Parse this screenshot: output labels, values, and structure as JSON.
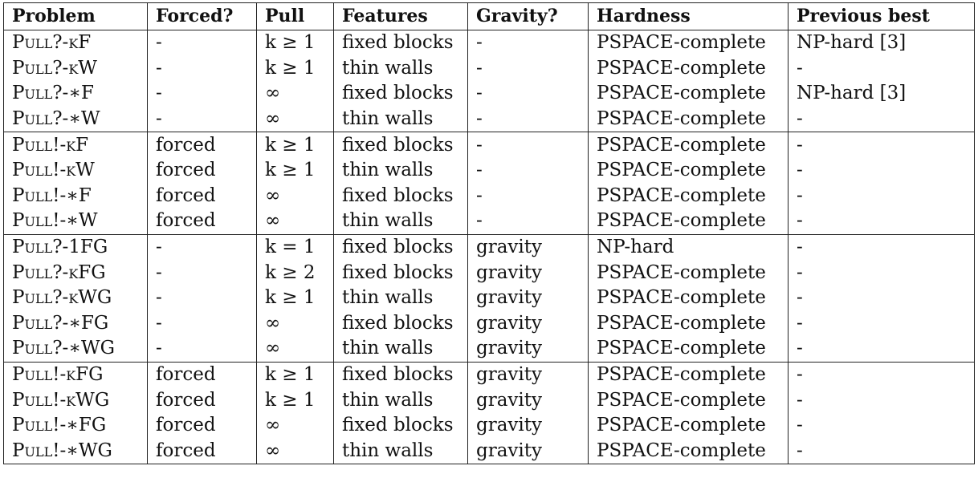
{
  "headers": [
    "Problem",
    "Forced?",
    "Pull",
    "Features",
    "Gravity?",
    "Hardness",
    "Previous best"
  ],
  "groups": [
    [
      {
        "problem": "Pull?-kF",
        "forced": "-",
        "pull": "k ≥ 1",
        "features": "fixed blocks",
        "gravity": "-",
        "hardness": "PSPACE-complete",
        "previous": "NP-hard [3]"
      },
      {
        "problem": "Pull?-kW",
        "forced": "-",
        "pull": "k ≥ 1",
        "features": "thin walls",
        "gravity": "-",
        "hardness": "PSPACE-complete",
        "previous": "-"
      },
      {
        "problem": "Pull?-∗F",
        "forced": "-",
        "pull": "∞",
        "features": "fixed blocks",
        "gravity": "-",
        "hardness": "PSPACE-complete",
        "previous": "NP-hard [3]"
      },
      {
        "problem": "Pull?-∗W",
        "forced": "-",
        "pull": "∞",
        "features": "thin walls",
        "gravity": "-",
        "hardness": "PSPACE-complete",
        "previous": "-"
      }
    ],
    [
      {
        "problem": "Pull!-kF",
        "forced": "forced",
        "pull": "k ≥ 1",
        "features": "fixed blocks",
        "gravity": "-",
        "hardness": "PSPACE-complete",
        "previous": "-"
      },
      {
        "problem": "Pull!-kW",
        "forced": "forced",
        "pull": "k ≥ 1",
        "features": "thin walls",
        "gravity": "-",
        "hardness": "PSPACE-complete",
        "previous": "-"
      },
      {
        "problem": "Pull!-∗F",
        "forced": "forced",
        "pull": "∞",
        "features": "fixed blocks",
        "gravity": "-",
        "hardness": "PSPACE-complete",
        "previous": "-"
      },
      {
        "problem": "Pull!-∗W",
        "forced": "forced",
        "pull": "∞",
        "features": "thin walls",
        "gravity": "-",
        "hardness": "PSPACE-complete",
        "previous": "-"
      }
    ],
    [
      {
        "problem": "Pull?-1FG",
        "forced": "-",
        "pull": "k = 1",
        "features": "fixed blocks",
        "gravity": "gravity",
        "hardness": "NP-hard",
        "previous": "-"
      },
      {
        "problem": "Pull?-kFG",
        "forced": "-",
        "pull": "k ≥ 2",
        "features": "fixed blocks",
        "gravity": "gravity",
        "hardness": "PSPACE-complete",
        "previous": "-"
      },
      {
        "problem": "Pull?-kWG",
        "forced": "-",
        "pull": "k ≥ 1",
        "features": "thin walls",
        "gravity": "gravity",
        "hardness": "PSPACE-complete",
        "previous": "-"
      },
      {
        "problem": "Pull?-∗FG",
        "forced": "-",
        "pull": "∞",
        "features": "fixed blocks",
        "gravity": "gravity",
        "hardness": "PSPACE-complete",
        "previous": "-"
      },
      {
        "problem": "Pull?-∗WG",
        "forced": "-",
        "pull": "∞",
        "features": "thin walls",
        "gravity": "gravity",
        "hardness": "PSPACE-complete",
        "previous": "-"
      }
    ],
    [
      {
        "problem": "Pull!-kFG",
        "forced": "forced",
        "pull": "k ≥ 1",
        "features": "fixed blocks",
        "gravity": "gravity",
        "hardness": "PSPACE-complete",
        "previous": "-"
      },
      {
        "problem": "Pull!-kWG",
        "forced": "forced",
        "pull": "k ≥ 1",
        "features": "thin walls",
        "gravity": "gravity",
        "hardness": "PSPACE-complete",
        "previous": "-"
      },
      {
        "problem": "Pull!-∗FG",
        "forced": "forced",
        "pull": "∞",
        "features": "fixed blocks",
        "gravity": "gravity",
        "hardness": "PSPACE-complete",
        "previous": "-"
      },
      {
        "problem": "Pull!-∗WG",
        "forced": "forced",
        "pull": "∞",
        "features": "thin walls",
        "gravity": "gravity",
        "hardness": "PSPACE-complete",
        "previous": "-"
      }
    ]
  ]
}
